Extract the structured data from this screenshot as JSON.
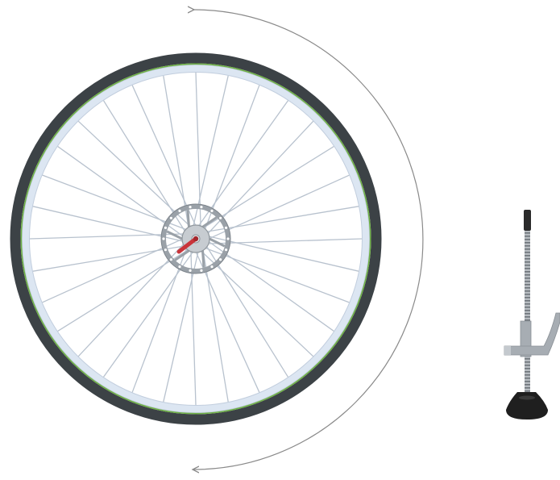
{
  "scene": {
    "background": "#ffffff",
    "objects": [
      {
        "name": "bicycle-wheel",
        "parts": [
          "tire",
          "rim",
          "spokes",
          "hub",
          "disc-brake-rotor",
          "quick-release-lever"
        ]
      },
      {
        "name": "rotation-arrow",
        "direction": "counter-clockwise"
      },
      {
        "name": "screw-stand",
        "parts": [
          "knob",
          "threaded-rod",
          "clamp-arm",
          "base"
        ]
      }
    ]
  },
  "colors": {
    "tire": "#3c4246",
    "tire_stripe": "#6fb146",
    "rim": "#dce6f2",
    "spoke": "#b8c2ce",
    "rotor": "#9aa1a8",
    "hub": "#c7ccd1",
    "quick_release": "#c9343a",
    "arrow": "#8a8a8a",
    "stand_metal": "#a7adb3",
    "stand_dark": "#2b2b2b"
  }
}
